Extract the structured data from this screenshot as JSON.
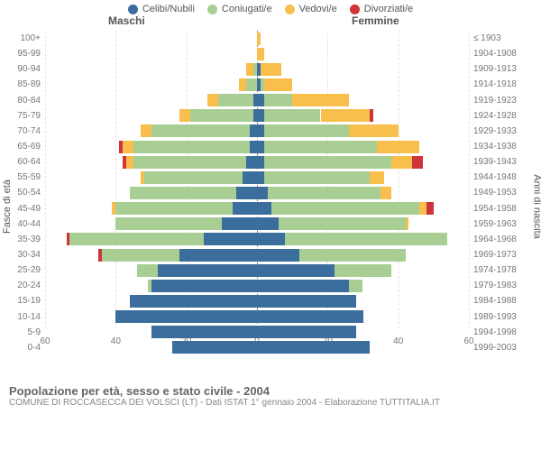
{
  "legend": {
    "items": [
      {
        "label": "Celibi/Nubili",
        "color": "#3b6e9c"
      },
      {
        "label": "Coniugati/e",
        "color": "#a8ce94"
      },
      {
        "label": "Vedovi/e",
        "color": "#f8bf4c"
      },
      {
        "label": "Divorziati/e",
        "color": "#cf3538"
      }
    ]
  },
  "headers": {
    "male": "Maschi",
    "female": "Femmine"
  },
  "axis": {
    "left": "Fasce di età",
    "right": "Anni di nascita"
  },
  "x": {
    "max": 60,
    "step": 20,
    "ticks": [
      60,
      40,
      20,
      0,
      20,
      40,
      60
    ]
  },
  "colors": {
    "single": "#3b6e9c",
    "married": "#a8ce94",
    "widowed": "#f8bf4c",
    "divorced": "#cf3538",
    "grid": "#e3e3e3",
    "center": "#888"
  },
  "footer": {
    "title": "Popolazione per età, sesso e stato civile - 2004",
    "subtitle": "COMUNE DI ROCCASECCA DEI VOLSCI (LT) - Dati ISTAT 1° gennaio 2004 - Elaborazione TUTTITALIA.IT"
  },
  "rows": [
    {
      "age": "100+",
      "birth": "≤ 1903",
      "m": {
        "s": 0,
        "c": 0,
        "w": 0,
        "d": 0
      },
      "f": {
        "s": 0,
        "c": 0,
        "w": 1,
        "d": 0
      }
    },
    {
      "age": "95-99",
      "birth": "1904-1908",
      "m": {
        "s": 0,
        "c": 0,
        "w": 0,
        "d": 0
      },
      "f": {
        "s": 0,
        "c": 0,
        "w": 2,
        "d": 0
      }
    },
    {
      "age": "90-94",
      "birth": "1909-1913",
      "m": {
        "s": 0,
        "c": 1,
        "w": 2,
        "d": 0
      },
      "f": {
        "s": 1,
        "c": 0,
        "w": 6,
        "d": 0
      }
    },
    {
      "age": "85-89",
      "birth": "1914-1918",
      "m": {
        "s": 0,
        "c": 3,
        "w": 2,
        "d": 0
      },
      "f": {
        "s": 1,
        "c": 1,
        "w": 8,
        "d": 0
      }
    },
    {
      "age": "80-84",
      "birth": "1919-1923",
      "m": {
        "s": 1,
        "c": 10,
        "w": 3,
        "d": 0
      },
      "f": {
        "s": 2,
        "c": 8,
        "w": 16,
        "d": 0
      }
    },
    {
      "age": "75-79",
      "birth": "1924-1928",
      "m": {
        "s": 1,
        "c": 18,
        "w": 3,
        "d": 0
      },
      "f": {
        "s": 2,
        "c": 16,
        "w": 14,
        "d": 1
      }
    },
    {
      "age": "70-74",
      "birth": "1929-1933",
      "m": {
        "s": 2,
        "c": 28,
        "w": 3,
        "d": 0
      },
      "f": {
        "s": 2,
        "c": 24,
        "w": 14,
        "d": 0
      }
    },
    {
      "age": "65-69",
      "birth": "1934-1938",
      "m": {
        "s": 2,
        "c": 33,
        "w": 3,
        "d": 1
      },
      "f": {
        "s": 2,
        "c": 32,
        "w": 12,
        "d": 0
      }
    },
    {
      "age": "60-64",
      "birth": "1939-1943",
      "m": {
        "s": 3,
        "c": 32,
        "w": 2,
        "d": 1
      },
      "f": {
        "s": 2,
        "c": 36,
        "w": 6,
        "d": 3
      }
    },
    {
      "age": "55-59",
      "birth": "1944-1948",
      "m": {
        "s": 4,
        "c": 28,
        "w": 1,
        "d": 0
      },
      "f": {
        "s": 2,
        "c": 30,
        "w": 4,
        "d": 0
      }
    },
    {
      "age": "50-54",
      "birth": "1949-1953",
      "m": {
        "s": 6,
        "c": 30,
        "w": 0,
        "d": 0
      },
      "f": {
        "s": 3,
        "c": 32,
        "w": 3,
        "d": 0
      }
    },
    {
      "age": "45-49",
      "birth": "1954-1958",
      "m": {
        "s": 7,
        "c": 33,
        "w": 1,
        "d": 0
      },
      "f": {
        "s": 4,
        "c": 42,
        "w": 2,
        "d": 2
      }
    },
    {
      "age": "40-44",
      "birth": "1959-1963",
      "m": {
        "s": 10,
        "c": 30,
        "w": 0,
        "d": 0
      },
      "f": {
        "s": 6,
        "c": 36,
        "w": 1,
        "d": 0
      }
    },
    {
      "age": "35-39",
      "birth": "1964-1968",
      "m": {
        "s": 15,
        "c": 38,
        "w": 0,
        "d": 1
      },
      "f": {
        "s": 8,
        "c": 46,
        "w": 0,
        "d": 0
      }
    },
    {
      "age": "30-34",
      "birth": "1969-1973",
      "m": {
        "s": 22,
        "c": 22,
        "w": 0,
        "d": 1
      },
      "f": {
        "s": 12,
        "c": 30,
        "w": 0,
        "d": 0
      }
    },
    {
      "age": "25-29",
      "birth": "1974-1978",
      "m": {
        "s": 28,
        "c": 6,
        "w": 0,
        "d": 0
      },
      "f": {
        "s": 22,
        "c": 16,
        "w": 0,
        "d": 0
      }
    },
    {
      "age": "20-24",
      "birth": "1979-1983",
      "m": {
        "s": 30,
        "c": 1,
        "w": 0,
        "d": 0
      },
      "f": {
        "s": 26,
        "c": 4,
        "w": 0,
        "d": 0
      }
    },
    {
      "age": "15-19",
      "birth": "1984-1988",
      "m": {
        "s": 36,
        "c": 0,
        "w": 0,
        "d": 0
      },
      "f": {
        "s": 28,
        "c": 0,
        "w": 0,
        "d": 0
      }
    },
    {
      "age": "10-14",
      "birth": "1989-1993",
      "m": {
        "s": 40,
        "c": 0,
        "w": 0,
        "d": 0
      },
      "f": {
        "s": 30,
        "c": 0,
        "w": 0,
        "d": 0
      }
    },
    {
      "age": "5-9",
      "birth": "1994-1998",
      "m": {
        "s": 30,
        "c": 0,
        "w": 0,
        "d": 0
      },
      "f": {
        "s": 28,
        "c": 0,
        "w": 0,
        "d": 0
      }
    },
    {
      "age": "0-4",
      "birth": "1999-2003",
      "m": {
        "s": 24,
        "c": 0,
        "w": 0,
        "d": 0
      },
      "f": {
        "s": 32,
        "c": 0,
        "w": 0,
        "d": 0
      }
    }
  ]
}
